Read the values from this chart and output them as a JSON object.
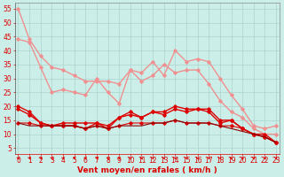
{
  "background_color": "#cceee8",
  "grid_color": "#aad4ce",
  "xlabel": "Vent moyen/en rafales ( km/h )",
  "ylabel_ticks": [
    5,
    10,
    15,
    20,
    25,
    30,
    35,
    40,
    45,
    50,
    55
  ],
  "x_ticks": [
    0,
    1,
    2,
    3,
    4,
    5,
    6,
    7,
    8,
    9,
    10,
    11,
    12,
    13,
    14,
    15,
    16,
    17,
    18,
    19,
    20,
    21,
    22,
    23
  ],
  "xlim": [
    -0.3,
    23.3
  ],
  "ylim": [
    3,
    57
  ],
  "series": [
    {
      "x": [
        0,
        1,
        2,
        3,
        4,
        5,
        6,
        7,
        8,
        9,
        10,
        11,
        12,
        13,
        14,
        15,
        16,
        17,
        18,
        19,
        20,
        21,
        22,
        23
      ],
      "y": [
        55,
        44,
        38,
        34,
        33,
        31,
        29,
        29,
        29,
        28,
        33,
        32,
        36,
        31,
        40,
        36,
        37,
        36,
        30,
        24,
        19,
        13,
        12,
        13
      ],
      "color": "#f09090",
      "marker": "D",
      "markersize": 1.8,
      "linewidth": 1.0
    },
    {
      "x": [
        0,
        1,
        2,
        3,
        4,
        5,
        6,
        7,
        8,
        9,
        10,
        11,
        12,
        13,
        14,
        15,
        16,
        17,
        18,
        19,
        20,
        21,
        22,
        23
      ],
      "y": [
        44,
        43,
        34,
        25,
        26,
        25,
        24,
        30,
        25,
        21,
        33,
        29,
        31,
        35,
        32,
        33,
        33,
        28,
        22,
        18,
        16,
        12,
        10,
        10
      ],
      "color": "#f09090",
      "marker": "D",
      "markersize": 1.8,
      "linewidth": 1.0
    },
    {
      "x": [
        0,
        1,
        2,
        3,
        4,
        5,
        6,
        7,
        8,
        9,
        10,
        11,
        12,
        13,
        14,
        15,
        16,
        17,
        18,
        19,
        20,
        21,
        22,
        23
      ],
      "y": [
        20,
        18,
        14,
        13,
        13,
        13,
        12,
        14,
        12,
        16,
        18,
        16,
        18,
        18,
        20,
        19,
        19,
        19,
        15,
        15,
        12,
        10,
        10,
        7
      ],
      "color": "#dd0000",
      "marker": "D",
      "markersize": 1.8,
      "linewidth": 1.0
    },
    {
      "x": [
        0,
        1,
        2,
        3,
        4,
        5,
        6,
        7,
        8,
        9,
        10,
        11,
        12,
        13,
        14,
        15,
        16,
        17,
        18,
        19,
        20,
        21,
        22,
        23
      ],
      "y": [
        19,
        17,
        14,
        13,
        14,
        14,
        14,
        14,
        13,
        16,
        17,
        16,
        18,
        17,
        19,
        18,
        19,
        18,
        14,
        15,
        12,
        10,
        9,
        7
      ],
      "color": "#dd0000",
      "marker": "D",
      "markersize": 1.8,
      "linewidth": 1.0
    },
    {
      "x": [
        0,
        1,
        2,
        3,
        4,
        5,
        6,
        7,
        8,
        9,
        10,
        11,
        12,
        13,
        14,
        15,
        16,
        17,
        18,
        19,
        20,
        21,
        22,
        23
      ],
      "y": [
        14,
        14,
        13,
        13,
        13,
        13,
        12,
        13,
        12,
        13,
        14,
        14,
        14,
        14,
        15,
        14,
        14,
        14,
        13,
        13,
        12,
        10,
        9,
        7
      ],
      "color": "#dd0000",
      "marker": "D",
      "markersize": 1.8,
      "linewidth": 0.8
    },
    {
      "x": [
        0,
        1,
        2,
        3,
        4,
        5,
        6,
        7,
        8,
        9,
        10,
        11,
        12,
        13,
        14,
        15,
        16,
        17,
        18,
        19,
        20,
        21,
        22,
        23
      ],
      "y": [
        14,
        13,
        13,
        13,
        13,
        13,
        12,
        13,
        12,
        13,
        13,
        13,
        14,
        14,
        15,
        14,
        14,
        14,
        13,
        12,
        11,
        10,
        9,
        7
      ],
      "color": "#880000",
      "marker": null,
      "markersize": 0,
      "linewidth": 0.8
    }
  ],
  "arrow_color": "#dd0000",
  "xlabel_color": "#dd0000",
  "xlabel_fontsize": 6.5,
  "tick_fontsize": 5.5,
  "fig_width": 3.2,
  "fig_height": 2.0,
  "dpi": 100
}
